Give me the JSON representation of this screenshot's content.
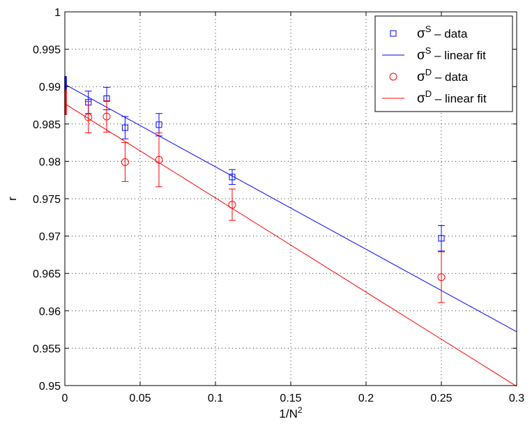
{
  "chart_data": {
    "type": "scatter",
    "xlabel": "1/N",
    "xlabel_sup": "2",
    "ylabel": "r",
    "xlim": [
      0,
      0.3
    ],
    "ylim": [
      0.95,
      1.0
    ],
    "x_ticks": [
      0,
      0.05,
      0.1,
      0.15,
      0.2,
      0.25,
      0.3
    ],
    "x_tick_labels": [
      "0",
      "0.05",
      "0.1",
      "0.15",
      "0.2",
      "0.25",
      "0.3"
    ],
    "y_ticks": [
      0.95,
      0.955,
      0.96,
      0.965,
      0.97,
      0.975,
      0.98,
      0.985,
      0.99,
      0.995,
      1.0
    ],
    "y_tick_labels": [
      "0.95",
      "0.955",
      "0.96",
      "0.965",
      "0.97",
      "0.975",
      "0.98",
      "0.985",
      "0.99",
      "0.995",
      "1"
    ],
    "grid": true,
    "legend_position": "top-right",
    "series": [
      {
        "name": "sigma-S-data",
        "kind": "points",
        "marker": "square",
        "color": "#0000ff",
        "legend_symbol": "σ",
        "legend_sup": "S",
        "legend_text": " – data",
        "x": [
          0.015625,
          0.027778,
          0.04,
          0.0625,
          0.111111,
          0.25
        ],
        "y": [
          0.9879,
          0.9884,
          0.9845,
          0.9849,
          0.9779,
          0.9697
        ],
        "yerr": [
          0.0015,
          0.0015,
          0.0015,
          0.0015,
          0.001,
          0.0017
        ]
      },
      {
        "name": "sigma-S-fit",
        "kind": "line",
        "color": "#0000ff",
        "legend_symbol": "σ",
        "legend_sup": "S",
        "legend_text": " – linear fit",
        "x": [
          0,
          0.3
        ],
        "y": [
          0.9903,
          0.9572
        ],
        "intercept_bar": [
          0.9893,
          0.9914
        ]
      },
      {
        "name": "sigma-D-data",
        "kind": "points",
        "marker": "circle",
        "color": "#ff0000",
        "legend_symbol": "σ",
        "legend_sup": "D",
        "legend_text": " – data",
        "x": [
          0.015625,
          0.027778,
          0.04,
          0.0625,
          0.111111,
          0.25
        ],
        "y": [
          0.9859,
          0.986,
          0.9799,
          0.9802,
          0.9742,
          0.9645
        ],
        "yerr": [
          0.0021,
          0.0021,
          0.0026,
          0.0036,
          0.0021,
          0.0034
        ]
      },
      {
        "name": "sigma-D-fit",
        "kind": "line",
        "color": "#ff0000",
        "legend_symbol": "σ",
        "legend_sup": "D",
        "legend_text": " – linear fit",
        "x": [
          0,
          0.3
        ],
        "y": [
          0.9877,
          0.9499
        ],
        "intercept_bar": [
          0.9862,
          0.9896
        ]
      }
    ]
  }
}
